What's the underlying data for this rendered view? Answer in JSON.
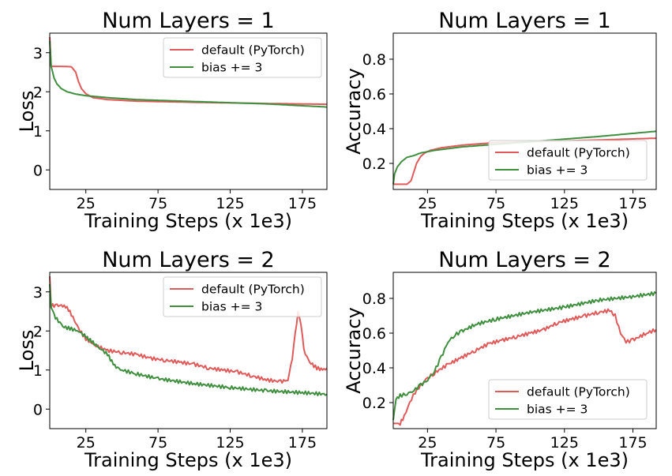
{
  "colors": {
    "default": "#e05a5a",
    "bias": "#3f8f3f"
  },
  "chart_data": [
    {
      "type": "line",
      "title": "Num Layers = 1",
      "xlabel": "Training Steps (x 1e3)",
      "ylabel": "Loss",
      "xlim": [
        0,
        192
      ],
      "ylim": [
        -0.5,
        3.5
      ],
      "xticks": [
        25,
        75,
        125,
        175
      ],
      "yticks": [
        0,
        1,
        2,
        3
      ],
      "legend": "top-right",
      "series": [
        {
          "name": "default (PyTorch)",
          "color_key": "default",
          "x": [
            0,
            1,
            3,
            8,
            15,
            18,
            20,
            22,
            25,
            30,
            40,
            60,
            100,
            150,
            192
          ],
          "y": [
            3.4,
            2.65,
            2.65,
            2.65,
            2.64,
            2.5,
            2.25,
            2.08,
            1.95,
            1.85,
            1.8,
            1.76,
            1.73,
            1.7,
            1.68
          ]
        },
        {
          "name": "bias += 3",
          "color_key": "bias",
          "x": [
            0,
            1,
            3,
            5,
            8,
            12,
            18,
            25,
            40,
            60,
            100,
            150,
            192
          ],
          "y": [
            3.3,
            2.65,
            2.35,
            2.2,
            2.08,
            2.0,
            1.94,
            1.9,
            1.85,
            1.8,
            1.75,
            1.69,
            1.61
          ]
        }
      ]
    },
    {
      "type": "line",
      "title": "Num Layers = 1",
      "xlabel": "Training Steps (x 1e3)",
      "ylabel": "Accuracy",
      "xlim": [
        0,
        192
      ],
      "ylim": [
        0.05,
        0.95
      ],
      "xticks": [
        25,
        75,
        125,
        175
      ],
      "yticks": [
        0.2,
        0.4,
        0.6,
        0.8
      ],
      "legend": "lower-right",
      "series": [
        {
          "name": "default (PyTorch)",
          "color_key": "default",
          "x": [
            0,
            5,
            10,
            13,
            15,
            17,
            20,
            23,
            27,
            35,
            50,
            75,
            100,
            150,
            192
          ],
          "y": [
            0.08,
            0.08,
            0.08,
            0.1,
            0.15,
            0.2,
            0.24,
            0.26,
            0.275,
            0.29,
            0.305,
            0.32,
            0.325,
            0.335,
            0.345
          ]
        },
        {
          "name": "bias += 3",
          "color_key": "bias",
          "x": [
            0,
            1,
            3,
            6,
            10,
            15,
            20,
            30,
            50,
            75,
            100,
            150,
            192
          ],
          "y": [
            0.08,
            0.14,
            0.18,
            0.21,
            0.235,
            0.245,
            0.26,
            0.275,
            0.295,
            0.31,
            0.325,
            0.355,
            0.385
          ]
        }
      ]
    },
    {
      "type": "line",
      "title": "Num Layers = 2",
      "xlabel": "Training Steps (x 1e3)",
      "ylabel": "Loss",
      "xlim": [
        0,
        192
      ],
      "ylim": [
        -0.5,
        3.5
      ],
      "xticks": [
        25,
        75,
        125,
        175
      ],
      "yticks": [
        0,
        1,
        2,
        3
      ],
      "legend": "top-right",
      "series": [
        {
          "name": "default (PyTorch)",
          "color_key": "default",
          "x": [
            0,
            1,
            5,
            10,
            13,
            16,
            20,
            25,
            30,
            40,
            50,
            60,
            70,
            80,
            90,
            100,
            110,
            120,
            130,
            140,
            150,
            160,
            165,
            168,
            170,
            172,
            174,
            176,
            180,
            185,
            190,
            192
          ],
          "y": [
            3.4,
            2.65,
            2.65,
            2.65,
            2.55,
            2.35,
            2.05,
            1.8,
            1.65,
            1.5,
            1.45,
            1.4,
            1.3,
            1.25,
            1.2,
            1.15,
            1.05,
            1.0,
            0.95,
            0.85,
            0.75,
            0.7,
            0.75,
            1.3,
            1.9,
            2.5,
            2.2,
            1.5,
            1.2,
            1.05,
            1.0,
            1.05
          ]
        },
        {
          "name": "bias += 3",
          "color_key": "bias",
          "x": [
            0,
            1,
            3,
            6,
            10,
            15,
            20,
            25,
            30,
            35,
            40,
            45,
            50,
            60,
            75,
            100,
            125,
            150,
            175,
            192
          ],
          "y": [
            3.2,
            2.6,
            2.4,
            2.25,
            2.1,
            2.05,
            2.0,
            1.85,
            1.7,
            1.55,
            1.4,
            1.1,
            1.0,
            0.9,
            0.78,
            0.65,
            0.55,
            0.47,
            0.42,
            0.38
          ]
        }
      ]
    },
    {
      "type": "line",
      "title": "Num Layers = 2",
      "xlabel": "Training Steps (x 1e3)",
      "ylabel": "Accuracy",
      "xlim": [
        0,
        192
      ],
      "ylim": [
        0.05,
        0.95
      ],
      "xticks": [
        25,
        75,
        125,
        175
      ],
      "yticks": [
        0.2,
        0.4,
        0.6,
        0.8
      ],
      "legend": "lower-right",
      "series": [
        {
          "name": "default (PyTorch)",
          "color_key": "default",
          "x": [
            0,
            5,
            8,
            12,
            16,
            20,
            25,
            30,
            40,
            50,
            60,
            70,
            80,
            90,
            100,
            110,
            120,
            130,
            140,
            150,
            158,
            162,
            166,
            170,
            175,
            185,
            192
          ],
          "y": [
            0.08,
            0.08,
            0.12,
            0.2,
            0.26,
            0.3,
            0.34,
            0.37,
            0.42,
            0.46,
            0.5,
            0.54,
            0.56,
            0.58,
            0.6,
            0.62,
            0.66,
            0.68,
            0.7,
            0.72,
            0.73,
            0.7,
            0.6,
            0.55,
            0.56,
            0.6,
            0.62
          ]
        },
        {
          "name": "bias += 3",
          "color_key": "bias",
          "x": [
            0,
            2,
            5,
            10,
            15,
            20,
            25,
            30,
            35,
            40,
            45,
            50,
            60,
            75,
            100,
            125,
            150,
            175,
            192
          ],
          "y": [
            0.1,
            0.22,
            0.24,
            0.25,
            0.27,
            0.3,
            0.33,
            0.38,
            0.46,
            0.55,
            0.59,
            0.61,
            0.65,
            0.68,
            0.72,
            0.75,
            0.79,
            0.81,
            0.83
          ]
        }
      ]
    }
  ]
}
